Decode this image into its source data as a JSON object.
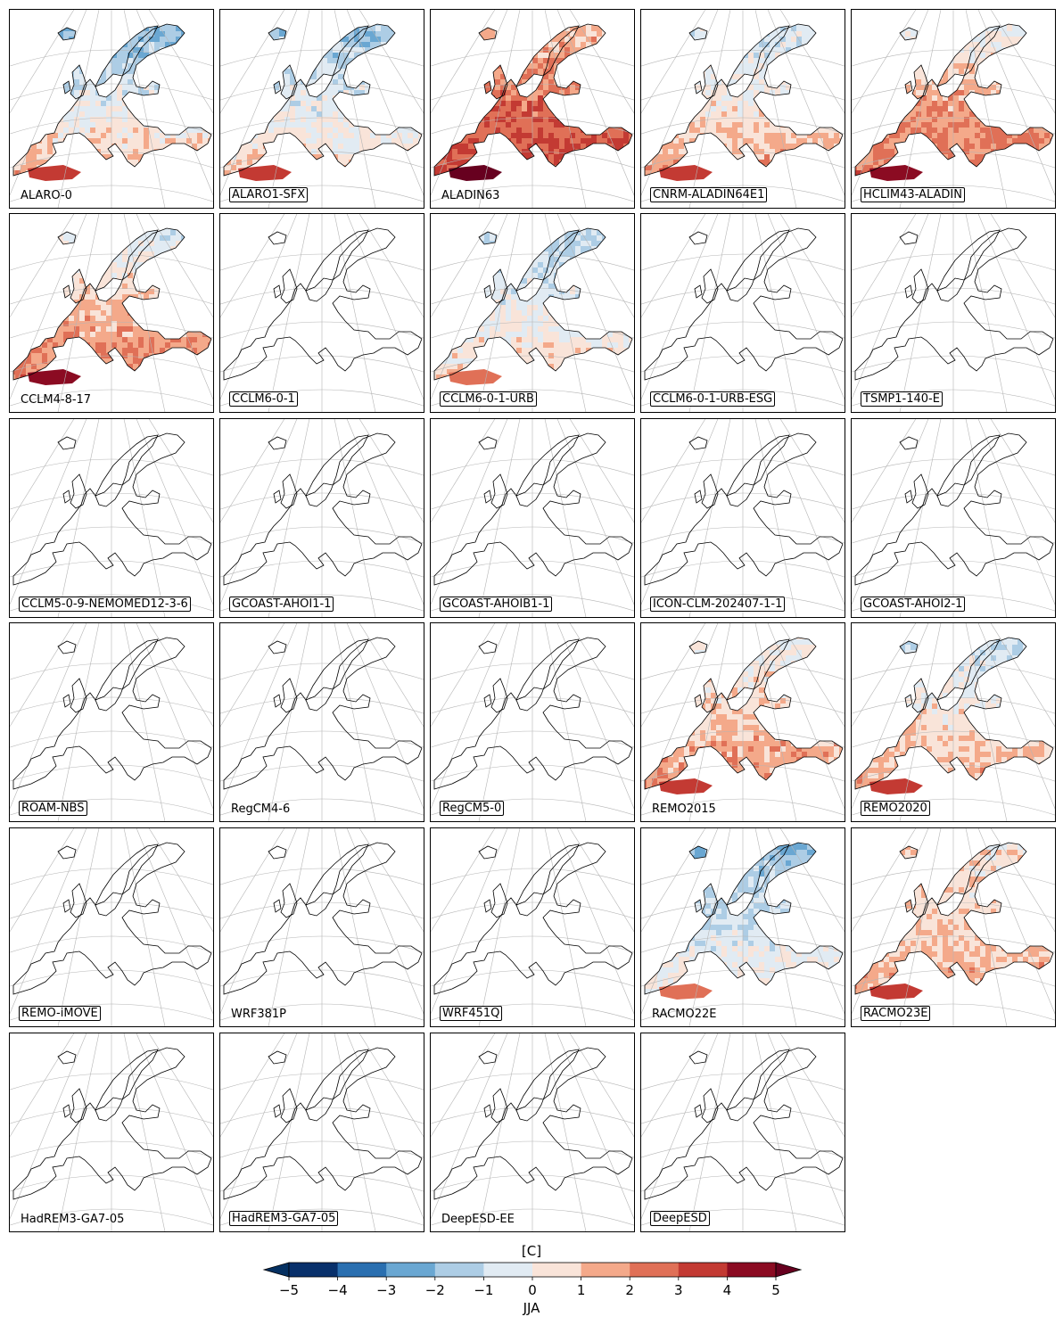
{
  "colors": {
    "levels": [
      "#08306b",
      "#2a6fb0",
      "#6aa7d2",
      "#adcde5",
      "#e1ebf3",
      "#f9e4d9",
      "#f4a98a",
      "#e07057",
      "#c33a33",
      "#8b0b22"
    ],
    "under": "#053061",
    "over": "#67001f"
  },
  "chart_data": {
    "type": "heatmap",
    "units": "[C]",
    "season": "JJA",
    "colorbar": {
      "ticks": [
        "−5",
        "−4",
        "−3",
        "−2",
        "−1",
        "0",
        "1",
        "2",
        "3",
        "4",
        "5"
      ],
      "levels": [
        -5,
        -4,
        -3,
        -2,
        -1,
        0,
        1,
        2,
        3,
        4,
        5
      ],
      "extend": "both"
    },
    "panels": [
      {
        "name": "ALARO-0",
        "boxed": false,
        "has_data": true,
        "north": -2.5,
        "centre": -0.3,
        "south": 2.2
      },
      {
        "name": "ALARO1-SFX",
        "boxed": true,
        "has_data": true,
        "north": -2.0,
        "centre": -0.5,
        "south": 1.8
      },
      {
        "name": "ALADIN63",
        "boxed": false,
        "has_data": true,
        "north": 0.8,
        "centre": 2.5,
        "south": 3.8
      },
      {
        "name": "CNRM-ALADIN64E1",
        "boxed": true,
        "has_data": true,
        "north": -1.0,
        "centre": 0.3,
        "south": 2.5
      },
      {
        "name": "HCLIM43-ALADIN",
        "boxed": true,
        "has_data": true,
        "north": -0.6,
        "centre": 1.6,
        "south": 3.0
      },
      {
        "name": "CCLM4-8-17",
        "boxed": false,
        "has_data": true,
        "north": -1.0,
        "centre": 1.2,
        "south": 2.8
      },
      {
        "name": "CCLM6-0-1",
        "boxed": true,
        "has_data": false
      },
      {
        "name": "CCLM6-0-1-URB",
        "boxed": true,
        "has_data": true,
        "north": -1.5,
        "centre": -0.4,
        "south": 1.6
      },
      {
        "name": "CCLM6-0-1-URB-ESG",
        "boxed": true,
        "has_data": false
      },
      {
        "name": "TSMP1-140-E",
        "boxed": true,
        "has_data": false
      },
      {
        "name": "CCLM5-0-9-NEMOMED12-3-6",
        "boxed": true,
        "has_data": false
      },
      {
        "name": "GCOAST-AHOI1-1",
        "boxed": true,
        "has_data": false
      },
      {
        "name": "GCOAST-AHOIB1-1",
        "boxed": true,
        "has_data": false
      },
      {
        "name": "ICON-CLM-202407-1-1",
        "boxed": true,
        "has_data": false
      },
      {
        "name": "GCOAST-AHOI2-1",
        "boxed": true,
        "has_data": false
      },
      {
        "name": "ROAM-NBS",
        "boxed": true,
        "has_data": false
      },
      {
        "name": "RegCM4-6",
        "boxed": false,
        "has_data": false
      },
      {
        "name": "RegCM5-0",
        "boxed": true,
        "has_data": false
      },
      {
        "name": "REMO2015",
        "boxed": false,
        "has_data": true,
        "north": -0.4,
        "centre": 0.9,
        "south": 2.6
      },
      {
        "name": "REMO2020",
        "boxed": true,
        "has_data": true,
        "north": -1.3,
        "centre": 0.4,
        "south": 2.0
      },
      {
        "name": "REMO-iMOVE",
        "boxed": true,
        "has_data": false
      },
      {
        "name": "WRF381P",
        "boxed": false,
        "has_data": false
      },
      {
        "name": "WRF451Q",
        "boxed": true,
        "has_data": false
      },
      {
        "name": "RACMO22E",
        "boxed": false,
        "has_data": true,
        "north": -2.2,
        "centre": -0.8,
        "south": 0.8
      },
      {
        "name": "RACMO23E",
        "boxed": true,
        "has_data": true,
        "north": 0.4,
        "centre": 0.9,
        "south": 1.8
      },
      {
        "name": "HadREM3-GA7-05",
        "boxed": false,
        "has_data": false
      },
      {
        "name": "HadREM3-GA7-05",
        "boxed": true,
        "has_data": false
      },
      {
        "name": "DeepESD-EE",
        "boxed": false,
        "has_data": false
      },
      {
        "name": "DeepESD",
        "boxed": true,
        "has_data": false
      }
    ]
  }
}
